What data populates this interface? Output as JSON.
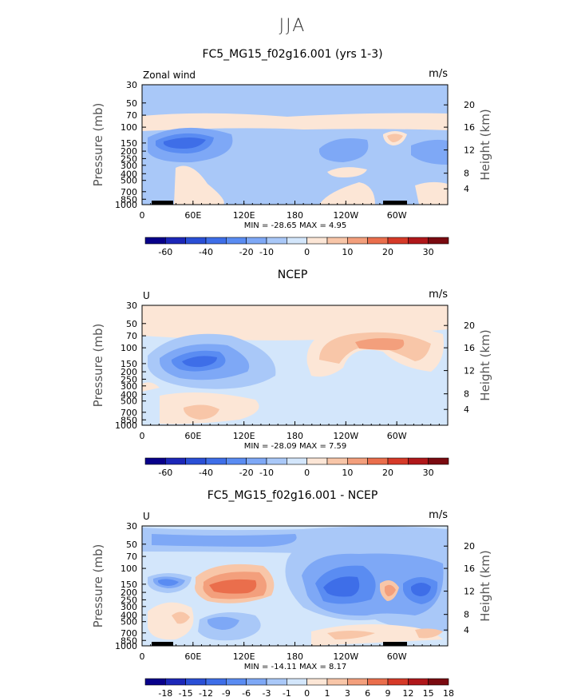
{
  "figure": {
    "title": "JJA"
  },
  "colors": {
    "wind_palette": [
      "#08008a",
      "#1c27b8",
      "#2a4fd6",
      "#3e6ee8",
      "#5a8cf2",
      "#7ea8f6",
      "#a9c8f8",
      "#d3e6fb",
      "#fce6d6",
      "#f8c6a8",
      "#f39f7c",
      "#ea6e4c",
      "#d63a28",
      "#b0171a",
      "#7a0a10"
    ],
    "diff_palette": [
      "#08008a",
      "#1c27b8",
      "#2a4fd6",
      "#3e6ee8",
      "#5a8cf2",
      "#7ea8f6",
      "#a9c8f8",
      "#d3e6fb",
      "#fce6d6",
      "#f8c6a8",
      "#f39f7c",
      "#ea6e4c",
      "#d63a28",
      "#b0171a",
      "#7a0a10"
    ]
  },
  "chart_data": [
    {
      "type": "heatmap",
      "title": "FC5_MG15_f02g16.001 (yrs 1-3)",
      "left_label": "Zonal wind",
      "units": "m/s",
      "xlabel": "",
      "ylabel": "Pressure (mb)",
      "y2label": "Height (km)",
      "x_ticks": [
        "0",
        "60E",
        "120E",
        "180",
        "120W",
        "60W"
      ],
      "y_ticks": [
        "30",
        "50",
        "70",
        "100",
        "150",
        "200",
        "250",
        "300",
        "400",
        "500",
        "700",
        "850",
        "1000"
      ],
      "y2_ticks": [
        "20",
        "16",
        "12",
        "8",
        "4"
      ],
      "stats": "MIN = -28.65   MAX =   4.95",
      "colorbar_labels": [
        "-60",
        "-40",
        "-20",
        "-10",
        "0",
        "10",
        "20",
        "30"
      ]
    },
    {
      "type": "heatmap",
      "title": "NCEP",
      "left_label": "U",
      "units": "m/s",
      "xlabel": "",
      "ylabel": "Pressure (mb)",
      "y2label": "Height (km)",
      "x_ticks": [
        "0",
        "60E",
        "120E",
        "180",
        "120W",
        "60W"
      ],
      "y_ticks": [
        "30",
        "50",
        "70",
        "100",
        "150",
        "200",
        "250",
        "300",
        "400",
        "500",
        "700",
        "850",
        "1000"
      ],
      "y2_ticks": [
        "20",
        "16",
        "12",
        "8",
        "4"
      ],
      "stats": "MIN = -28.09   MAX =   7.59",
      "colorbar_labels": [
        "-60",
        "-40",
        "-20",
        "-10",
        "0",
        "10",
        "20",
        "30"
      ]
    },
    {
      "type": "heatmap",
      "title": "FC5_MG15_f02g16.001 - NCEP",
      "left_label": "U",
      "units": "m/s",
      "xlabel": "",
      "ylabel": "Pressure (mb)",
      "y2label": "Height (km)",
      "x_ticks": [
        "0",
        "60E",
        "120E",
        "180",
        "120W",
        "60W"
      ],
      "y_ticks": [
        "30",
        "50",
        "70",
        "100",
        "150",
        "200",
        "250",
        "300",
        "400",
        "500",
        "700",
        "850",
        "1000"
      ],
      "y2_ticks": [
        "20",
        "16",
        "12",
        "8",
        "4"
      ],
      "stats": "MIN = -14.11   MAX =   8.17",
      "colorbar_labels": [
        "-18",
        "-15",
        "-12",
        "-9",
        "-6",
        "-3",
        "-1",
        "0",
        "1",
        "3",
        "6",
        "9",
        "12",
        "15",
        "18"
      ]
    }
  ]
}
